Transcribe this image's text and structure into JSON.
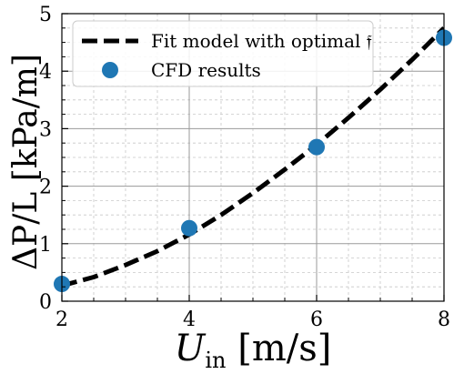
{
  "chart_data": {
    "type": "line",
    "xlim": [
      2,
      8
    ],
    "ylim": [
      0,
      5
    ],
    "x_ticks": [
      2,
      4,
      6,
      8
    ],
    "y_ticks": [
      0,
      1,
      2,
      3,
      4,
      5
    ],
    "x_tick_labels": [
      "2",
      "4",
      "6",
      "8"
    ],
    "y_tick_labels": [
      "0",
      "1",
      "2",
      "3",
      "4",
      "5"
    ],
    "x_minor_step": 0.5,
    "y_minor_step": 0.25,
    "grid": true,
    "xlabel": {
      "main": "U",
      "sub": "in",
      "unit": " [m/s]"
    },
    "ylabel": "ΔP/L [kPa/m]",
    "legend_position": "top-left",
    "series": [
      {
        "name": "Fit model with optimal 𝔣",
        "kind": "line",
        "style": "dashed",
        "color": "#000000",
        "x": [
          2.0,
          2.5,
          3.0,
          3.5,
          4.0,
          4.5,
          5.0,
          5.5,
          6.0,
          6.5,
          7.0,
          7.5,
          8.0
        ],
        "y": [
          0.27,
          0.42,
          0.63,
          0.87,
          1.16,
          1.5,
          1.88,
          2.29,
          2.72,
          3.19,
          3.68,
          4.2,
          4.75
        ]
      },
      {
        "name": "CFD results",
        "kind": "scatter",
        "color": "#1f77b4",
        "x": [
          2,
          4,
          6,
          8
        ],
        "y": [
          0.3,
          1.27,
          2.68,
          4.58
        ]
      }
    ]
  }
}
